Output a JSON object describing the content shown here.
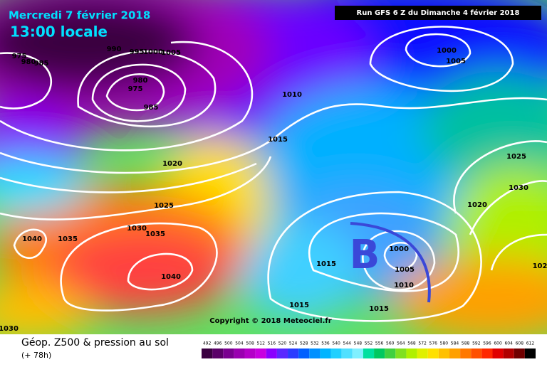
{
  "header": {
    "date": "Mercredi 7 février 2018",
    "time": "13:00 locale",
    "run": "Run GFS 6 Z du Dimanche 4 février 2018"
  },
  "map": {
    "low_label": "B",
    "copyright": "Copyright © 2018 Meteociel.fr",
    "isobar_labels": [
      975,
      980,
      985,
      990,
      995,
      1000,
      1005,
      980,
      975,
      985,
      1010,
      1015,
      1020,
      1025,
      1030,
      1035,
      1040,
      1035,
      1040,
      1030,
      1000,
      1005,
      1025,
      1030,
      1020,
      1000,
      1005,
      1010,
      1015,
      1015,
      1015,
      102
    ]
  },
  "footer": {
    "title": "Géop. Z500 & pression au sol",
    "lead": "(+ 78h)"
  },
  "legend": {
    "labels": [
      492,
      496,
      500,
      504,
      508,
      512,
      516,
      520,
      524,
      528,
      532,
      536,
      540,
      544,
      548,
      552,
      556,
      560,
      564,
      568,
      572,
      576,
      580,
      584,
      588,
      592,
      596,
      600,
      604,
      608,
      612
    ]
  }
}
